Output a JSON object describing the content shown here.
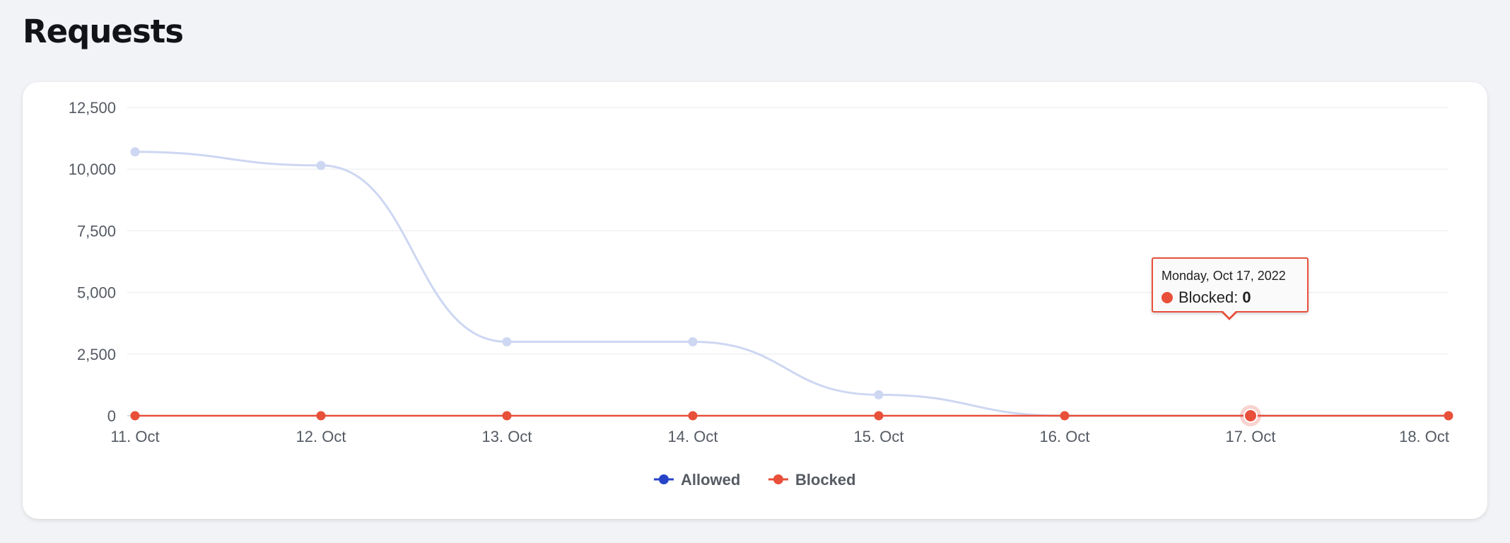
{
  "page": {
    "title": "Requests"
  },
  "colors": {
    "allowed": "#2744c9",
    "blocked": "#e8503a",
    "allowed_faded": "#cdd7f2"
  },
  "legend": {
    "allowed_label": "Allowed",
    "blocked_label": "Blocked",
    "position": "bottom-center"
  },
  "tooltip": {
    "date": "Monday, Oct 17, 2022",
    "series": "Blocked",
    "separator": ":",
    "value": "0"
  },
  "chart_data": {
    "type": "line",
    "categories": [
      "11. Oct",
      "12. Oct",
      "13. Oct",
      "14. Oct",
      "15. Oct",
      "16. Oct",
      "17. Oct",
      "18. Oct"
    ],
    "series": [
      {
        "name": "Allowed",
        "values": [
          10700,
          10150,
          3000,
          3000,
          850,
          0,
          0,
          0
        ]
      },
      {
        "name": "Blocked",
        "values": [
          0,
          0,
          0,
          0,
          0,
          0,
          0,
          0
        ]
      }
    ],
    "yticks": [
      "0",
      "2,500",
      "5,000",
      "7,500",
      "10,000",
      "12,500"
    ],
    "ylim": [
      0,
      12500
    ],
    "grid": true,
    "highlight": {
      "series": "Blocked",
      "category": "17. Oct"
    }
  }
}
